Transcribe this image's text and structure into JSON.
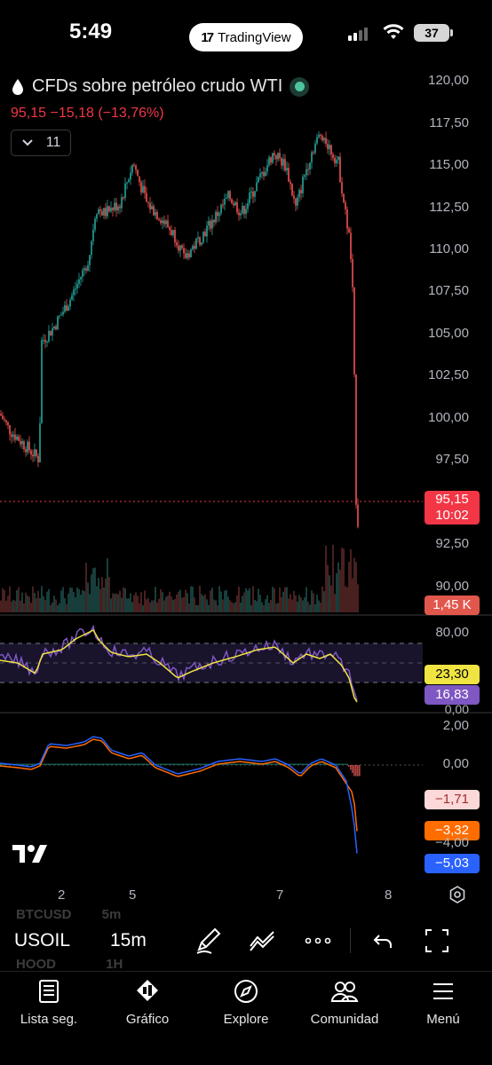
{
  "status": {
    "time": "5:49",
    "app_pill": "TradingView",
    "battery": "37"
  },
  "chart": {
    "title": "CFDs sobre petróleo crudo WTI",
    "price_change": "95,15  −15,18 (−13,76%)",
    "indicators_count": "11",
    "price_axis": [
      "120,00",
      "117,50",
      "115,00",
      "112,50",
      "110,00",
      "107,50",
      "105,00",
      "102,50",
      "100,00",
      "97,50",
      "92,50",
      "90,00"
    ],
    "last_price": "95,15",
    "countdown": "10:02",
    "volume": "1,45 K",
    "rsi_axis": [
      "80,00",
      "0,00"
    ],
    "rsi_ma": "23,30",
    "rsi_value": "16,83",
    "macd_axis": [
      "2,00",
      "0,00",
      "−4,00"
    ],
    "macd_hist": "−1,71",
    "macd_signal": "−3,32",
    "macd_line": "−5,03",
    "time_axis": [
      "2",
      "5",
      "7",
      "8"
    ],
    "colors": {
      "up": "#26a69a",
      "down": "#ef5350",
      "rsi": "#7e57c2",
      "rsi_ma": "#f0e442",
      "macd": "#2962ff",
      "signal": "#ff6d00"
    }
  },
  "watchlist_ghost": {
    "first_symbol": "BTCUSD",
    "first_interval": "5m",
    "second_symbol": "HOOD",
    "second_interval": "1H"
  },
  "toolbar": {
    "symbol": "USOIL",
    "interval": "15m"
  },
  "tabs": [
    {
      "label": "Lista seg.",
      "icon": "watchlist-icon"
    },
    {
      "label": "Gráfico",
      "icon": "chart-icon"
    },
    {
      "label": "Explore",
      "icon": "compass-icon"
    },
    {
      "label": "Comunidad",
      "icon": "community-icon"
    },
    {
      "label": "Menú",
      "icon": "menu-icon"
    }
  ]
}
